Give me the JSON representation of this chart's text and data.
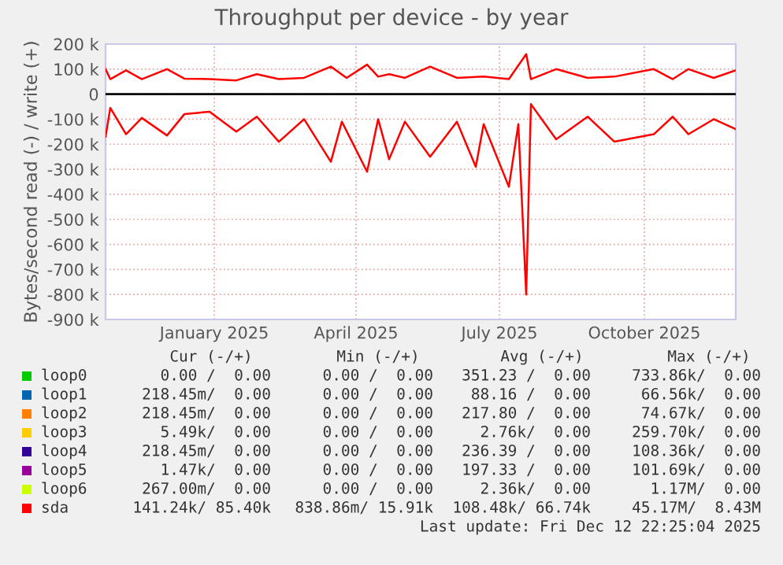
{
  "chart_data": {
    "type": "line",
    "title": "Throughput per device - by year",
    "ylabel": "Bytes/second read (-) / write (+)",
    "xlim": [
      "2024-11-07",
      "2025-12-12"
    ],
    "xticks": [
      {
        "value": "2025-01-15",
        "label": "January 2025"
      },
      {
        "value": "2025-04-15",
        "label": "April 2025"
      },
      {
        "value": "2025-07-15",
        "label": "July 2025"
      },
      {
        "value": "2025-10-15",
        "label": "October 2025"
      }
    ],
    "ylim": [
      -900000,
      200000
    ],
    "yticks": [
      {
        "value": -900000,
        "label": "-900 k"
      },
      {
        "value": -800000,
        "label": "-800 k"
      },
      {
        "value": -700000,
        "label": "-700 k"
      },
      {
        "value": -600000,
        "label": "-600 k"
      },
      {
        "value": -500000,
        "label": "-500 k"
      },
      {
        "value": -400000,
        "label": "-400 k"
      },
      {
        "value": -300000,
        "label": "-300 k"
      },
      {
        "value": -200000,
        "label": "-200 k"
      },
      {
        "value": -100000,
        "label": "-100 k"
      },
      0,
      {
        "value": 100000,
        "label": "100 k"
      },
      {
        "value": 200000,
        "label": "200 k"
      }
    ],
    "grid": true,
    "legend": "bottom",
    "marker": "none",
    "line_style": "solid",
    "ref_lines": [
      {
        "axis": "y",
        "value": 0,
        "color": "#000000"
      }
    ],
    "series": [
      {
        "name": "loop0",
        "color": "#00cc00"
      },
      {
        "name": "loop1",
        "color": "#0066b3"
      },
      {
        "name": "loop2",
        "color": "#ff8000"
      },
      {
        "name": "loop3",
        "color": "#ffcc00"
      },
      {
        "name": "loop4",
        "color": "#330099"
      },
      {
        "name": "loop5",
        "color": "#990099"
      },
      {
        "name": "loop6",
        "color": "#ccff00"
      },
      {
        "name": "sda",
        "color": "#ff0000",
        "x": [
          "2024-11-07",
          "2024-11-10",
          "2024-11-20",
          "2024-11-30",
          "2024-12-16",
          "2024-12-27",
          "2025-01-12",
          "2025-01-29",
          "2025-02-11",
          "2025-02-25",
          "2025-03-13",
          "2025-03-30",
          "2025-04-09",
          "2025-04-22",
          "2025-04-29",
          "2025-05-06",
          "2025-05-16",
          "2025-06-01",
          "2025-06-18",
          "2025-07-05",
          "2025-07-21",
          "2025-08-01",
          "2025-08-04",
          "2025-08-20",
          "2025-09-09",
          "2025-09-26",
          "2025-10-21",
          "2025-11-02",
          "2025-11-12",
          "2025-11-28",
          "2025-12-12"
        ],
        "values": [
          100000,
          60000,
          95000,
          60000,
          100000,
          62000,
          60000,
          55000,
          80000,
          60000,
          65000,
          110000,
          65000,
          118000,
          70000,
          80000,
          65000,
          110000,
          65000,
          70000,
          60000,
          160000,
          60000,
          100000,
          65000,
          70000,
          100000,
          60000,
          100000,
          65000,
          95000
        ]
      },
      {
        "color": "#ff0000",
        "x": [
          "2024-11-07",
          "2024-11-10",
          "2024-11-20",
          "2024-11-30",
          "2024-12-16",
          "2024-12-27",
          "2025-01-12",
          "2025-01-29",
          "2025-02-11",
          "2025-02-25",
          "2025-03-13",
          "2025-03-30",
          "2025-04-06",
          "2025-04-22",
          "2025-04-29",
          "2025-05-06",
          "2025-05-16",
          "2025-06-01",
          "2025-06-18",
          "2025-06-30",
          "2025-07-05",
          "2025-07-21",
          "2025-07-27",
          "2025-08-01",
          "2025-08-04",
          "2025-08-20",
          "2025-09-09",
          "2025-09-26",
          "2025-10-21",
          "2025-11-02",
          "2025-11-12",
          "2025-11-28",
          "2025-12-12"
        ],
        "values": [
          -170000,
          -55000,
          -160000,
          -95000,
          -165000,
          -80000,
          -70000,
          -150000,
          -90000,
          -190000,
          -100000,
          -270000,
          -110000,
          -310000,
          -100000,
          -260000,
          -110000,
          -250000,
          -110000,
          -290000,
          -120000,
          -370000,
          -120000,
          -800000,
          -40000,
          -180000,
          -90000,
          -190000,
          -160000,
          -90000,
          -160000,
          -100000,
          -140000
        ]
      }
    ],
    "annotations": [
      "Cur (-/+)",
      "Min (-/+)",
      "Avg (-/+)",
      "Max (-/+)",
      "0.00 /  0.00",
      "0.00 /  0.00",
      "351.23 /  0.00",
      "733.86k/  0.00",
      "218.45m/  0.00",
      "0.00 /  0.00",
      "88.16 /  0.00",
      "66.56k/  0.00",
      "218.45m/  0.00",
      "0.00 /  0.00",
      "217.80 /  0.00",
      "74.67k/  0.00",
      "5.49k/  0.00",
      "0.00 /  0.00",
      "2.76k/  0.00",
      "259.70k/  0.00",
      "218.45m/  0.00",
      "0.00 /  0.00",
      "236.39 /  0.00",
      "108.36k/  0.00",
      "1.47k/  0.00",
      "0.00 /  0.00",
      "197.33 /  0.00",
      "101.69k/  0.00",
      "267.00m/  0.00",
      "0.00 /  0.00",
      "2.36k/  0.00",
      "1.17M/  0.00",
      "141.24k/ 85.40k",
      "838.86m/ 15.91k",
      "108.48k/ 66.74k",
      "45.17M/  8.43M",
      "Last update: Fri Dec 12 22:25:04 2025"
    ]
  }
}
